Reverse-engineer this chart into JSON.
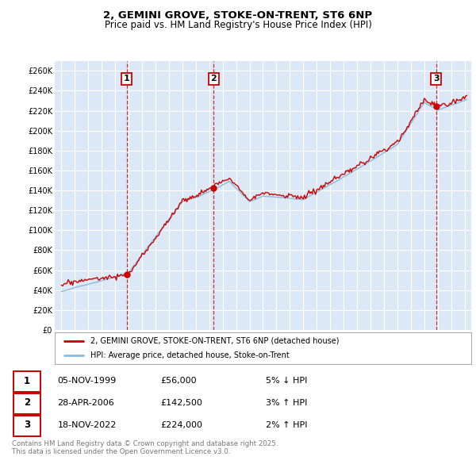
{
  "title": "2, GEMINI GROVE, STOKE-ON-TRENT, ST6 6NP",
  "subtitle": "Price paid vs. HM Land Registry's House Price Index (HPI)",
  "title_fontsize": 9.5,
  "subtitle_fontsize": 8.5,
  "ylabel_ticks": [
    "£0",
    "£20K",
    "£40K",
    "£60K",
    "£80K",
    "£100K",
    "£120K",
    "£140K",
    "£160K",
    "£180K",
    "£200K",
    "£220K",
    "£240K",
    "£260K"
  ],
  "ytick_values": [
    0,
    20000,
    40000,
    60000,
    80000,
    100000,
    120000,
    140000,
    160000,
    180000,
    200000,
    220000,
    240000,
    260000
  ],
  "xlim_start": 1994.5,
  "xlim_end": 2025.5,
  "ylim_min": 0,
  "ylim_max": 270000,
  "sale1_date": 1999.846,
  "sale1_price": 56000,
  "sale2_date": 2006.32,
  "sale2_price": 142500,
  "sale3_date": 2022.88,
  "sale3_price": 224000,
  "line_price_color": "#cc0000",
  "line_hpi_color": "#88bbdd",
  "background_chart": "#dce8f5",
  "grid_color": "#ffffff",
  "legend1_text": "2, GEMINI GROVE, STOKE-ON-TRENT, ST6 6NP (detached house)",
  "legend2_text": "HPI: Average price, detached house, Stoke-on-Trent",
  "table_row1": [
    "1",
    "05-NOV-1999",
    "£56,000",
    "5% ↓ HPI"
  ],
  "table_row2": [
    "2",
    "28-APR-2006",
    "£142,500",
    "3% ↑ HPI"
  ],
  "table_row3": [
    "3",
    "18-NOV-2022",
    "£224,000",
    "2% ↑ HPI"
  ],
  "footnote": "Contains HM Land Registry data © Crown copyright and database right 2025.\nThis data is licensed under the Open Government Licence v3.0.",
  "box_color": "#cc0000"
}
